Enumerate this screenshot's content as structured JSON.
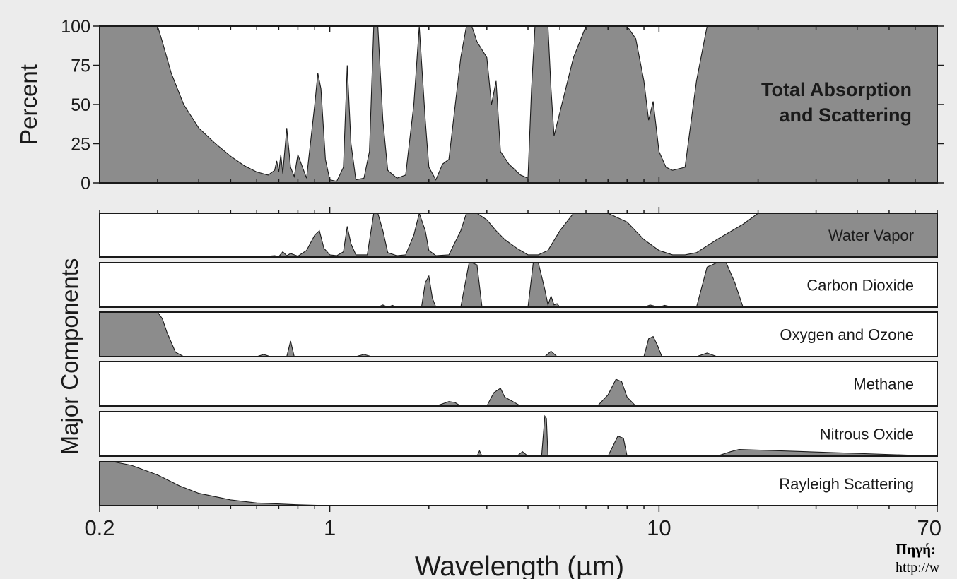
{
  "chart_data": {
    "type": "area",
    "x_scale": "log",
    "xlim": [
      0.2,
      70
    ],
    "xlabel": "Wavelength (µm)",
    "x_tick_labels": [
      {
        "value": 0.2,
        "label": "0.2"
      },
      {
        "value": 1,
        "label": "1"
      },
      {
        "value": 10,
        "label": "10"
      },
      {
        "value": 70,
        "label": "70"
      }
    ],
    "fill_color": "#8c8c8c",
    "panels": [
      {
        "name": "Total Absorption and Scattering",
        "label_lines": [
          "Total Absorption",
          "and Scattering"
        ],
        "ylabel": "Percent",
        "ylim": [
          0,
          100
        ],
        "y_ticks": [
          0,
          25,
          50,
          75,
          100
        ],
        "x": [
          0.2,
          0.3,
          0.31,
          0.33,
          0.36,
          0.4,
          0.45,
          0.5,
          0.55,
          0.6,
          0.65,
          0.68,
          0.69,
          0.7,
          0.71,
          0.72,
          0.74,
          0.76,
          0.78,
          0.8,
          0.85,
          0.9,
          0.92,
          0.94,
          0.97,
          1.0,
          1.05,
          1.1,
          1.13,
          1.16,
          1.2,
          1.27,
          1.32,
          1.36,
          1.4,
          1.45,
          1.5,
          1.6,
          1.7,
          1.8,
          1.87,
          1.95,
          2.0,
          2.1,
          2.2,
          2.3,
          2.5,
          2.6,
          2.7,
          2.8,
          3.0,
          3.1,
          3.2,
          3.3,
          3.5,
          3.8,
          4.0,
          4.1,
          4.2,
          4.4,
          4.6,
          4.7,
          4.8,
          5.0,
          5.5,
          6.0,
          7.0,
          8.0,
          8.5,
          9.0,
          9.3,
          9.6,
          10.0,
          10.5,
          11.0,
          12.0,
          13.0,
          14.0,
          15.0,
          20.0,
          70.0
        ],
        "y": [
          100,
          100,
          90,
          70,
          50,
          35,
          25,
          17,
          11,
          7,
          5,
          8,
          14,
          7,
          18,
          6,
          35,
          10,
          4,
          18,
          3,
          50,
          70,
          60,
          15,
          2,
          1,
          10,
          75,
          25,
          2,
          3,
          20,
          100,
          100,
          40,
          8,
          3,
          5,
          50,
          100,
          40,
          10,
          2,
          12,
          15,
          80,
          100,
          100,
          90,
          80,
          50,
          65,
          20,
          12,
          5,
          3,
          60,
          100,
          100,
          100,
          60,
          30,
          45,
          80,
          100,
          100,
          100,
          92,
          65,
          40,
          52,
          20,
          10,
          8,
          10,
          65,
          100,
          100,
          100,
          100
        ]
      },
      {
        "name": "Water Vapor",
        "x": [
          0.2,
          0.6,
          0.68,
          0.7,
          0.72,
          0.74,
          0.76,
          0.8,
          0.85,
          0.9,
          0.93,
          0.96,
          1.0,
          1.05,
          1.1,
          1.13,
          1.16,
          1.2,
          1.3,
          1.36,
          1.4,
          1.45,
          1.5,
          1.6,
          1.7,
          1.8,
          1.87,
          1.95,
          2.0,
          2.1,
          2.3,
          2.5,
          2.6,
          2.8,
          3.0,
          3.2,
          3.4,
          3.7,
          4.0,
          4.3,
          4.6,
          5.0,
          5.5,
          6.0,
          7.0,
          8.0,
          9.0,
          10.0,
          11.0,
          12.0,
          13.0,
          15.0,
          18.0,
          20.0,
          70.0
        ],
        "y": [
          0,
          0,
          3,
          1,
          12,
          3,
          8,
          2,
          15,
          50,
          60,
          20,
          5,
          3,
          12,
          70,
          30,
          5,
          5,
          100,
          100,
          60,
          10,
          3,
          5,
          50,
          100,
          60,
          15,
          3,
          5,
          60,
          100,
          100,
          85,
          60,
          40,
          20,
          5,
          5,
          15,
          60,
          100,
          100,
          100,
          80,
          40,
          15,
          5,
          5,
          10,
          40,
          75,
          100,
          100
        ]
      },
      {
        "name": "Carbon Dioxide",
        "x": [
          0.2,
          1.4,
          1.45,
          1.5,
          1.55,
          1.6,
          1.9,
          1.95,
          2.0,
          2.05,
          2.1,
          2.5,
          2.65,
          2.7,
          2.8,
          2.9,
          4.0,
          4.15,
          4.3,
          4.5,
          4.6,
          4.7,
          4.8,
          4.9,
          5.0,
          9.0,
          9.4,
          10.0,
          10.4,
          11.0,
          13.0,
          14.0,
          15.0,
          16.0,
          17.0,
          18.0,
          70.0
        ],
        "y": [
          0,
          0,
          5,
          0,
          4,
          0,
          0,
          55,
          70,
          20,
          0,
          0,
          100,
          100,
          95,
          0,
          0,
          100,
          100,
          40,
          5,
          25,
          5,
          8,
          0,
          0,
          5,
          0,
          4,
          0,
          0,
          90,
          100,
          100,
          55,
          0,
          0
        ]
      },
      {
        "name": "Oxygen and Ozone",
        "x": [
          0.2,
          0.3,
          0.31,
          0.32,
          0.34,
          0.36,
          0.4,
          0.6,
          0.63,
          0.66,
          0.74,
          0.76,
          0.78,
          1.2,
          1.27,
          1.34,
          4.5,
          4.7,
          4.9,
          9.0,
          9.3,
          9.6,
          9.9,
          10.2,
          13.0,
          14.0,
          15.0,
          70.0
        ],
        "y": [
          100,
          100,
          85,
          55,
          10,
          0,
          0,
          0,
          5,
          0,
          0,
          35,
          0,
          0,
          5,
          0,
          0,
          12,
          0,
          0,
          40,
          45,
          25,
          0,
          0,
          8,
          0,
          0
        ]
      },
      {
        "name": "Methane",
        "x": [
          0.2,
          2.1,
          2.2,
          2.3,
          2.4,
          2.5,
          3.0,
          3.15,
          3.3,
          3.4,
          3.6,
          3.8,
          6.5,
          7.0,
          7.4,
          7.7,
          8.0,
          8.5,
          70.0
        ],
        "y": [
          0,
          0,
          5,
          10,
          8,
          0,
          0,
          30,
          40,
          20,
          10,
          0,
          0,
          25,
          60,
          55,
          20,
          0,
          0
        ]
      },
      {
        "name": "Nitrous Oxide",
        "x": [
          0.2,
          2.8,
          2.85,
          2.9,
          3.7,
          3.85,
          4.0,
          4.4,
          4.5,
          4.55,
          4.6,
          7.0,
          7.5,
          7.8,
          8.0,
          15.0,
          16.5,
          17.5,
          70.0
        ],
        "y": [
          0,
          0,
          12,
          0,
          0,
          10,
          0,
          0,
          90,
          85,
          0,
          0,
          45,
          40,
          0,
          0,
          10,
          15,
          0
        ]
      },
      {
        "name": "Rayleigh Scattering",
        "x": [
          0.2,
          0.22,
          0.25,
          0.3,
          0.35,
          0.4,
          0.5,
          0.6,
          0.8,
          1.0,
          70.0
        ],
        "y": [
          100,
          100,
          92,
          70,
          45,
          28,
          13,
          6,
          2,
          0,
          0
        ]
      }
    ],
    "components_ylabel": "Major Components"
  },
  "source": {
    "label": "Πηγή:",
    "url": "http://w"
  }
}
